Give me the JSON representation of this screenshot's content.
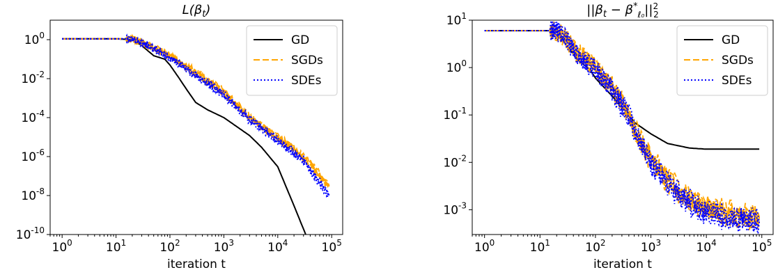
{
  "chart_data": [
    {
      "type": "line",
      "title": "L(β_t)",
      "xlabel": "iteration t",
      "ylabel": "",
      "xscale": "log",
      "yscale": "log",
      "xlim": [
        0.6,
        160000
      ],
      "ylim": [
        1e-10,
        10
      ],
      "xtick_exponents": [
        0,
        1,
        2,
        3,
        4,
        5
      ],
      "ytick_exponents": [
        0,
        -2,
        -4,
        -6,
        -8,
        -10
      ],
      "grid": false,
      "legend_position": "top-right",
      "legend": [
        {
          "label": "GD",
          "color": "#000000",
          "style": "solid"
        },
        {
          "label": "SGDs",
          "color": "#ffa500",
          "style": "dashed"
        },
        {
          "label": "SDEs",
          "color": "#0000ff",
          "style": "dotted"
        }
      ],
      "series": [
        {
          "name": "GD",
          "color": "#000000",
          "style": "solid",
          "x": [
            1,
            10,
            20,
            30,
            50,
            80,
            100,
            150,
            200,
            300,
            500,
            1000,
            3000,
            5000,
            10000,
            20000,
            33000
          ],
          "y": [
            1.1,
            1.1,
            1.0,
            0.5,
            0.15,
            0.1,
            0.05,
            0.01,
            0.003,
            0.0006,
            0.00025,
            0.0001,
            1.2e-05,
            3e-06,
            3e-07,
            3e-09,
            1e-10
          ]
        },
        {
          "name": "SGDs",
          "color": "#ffa500",
          "style": "dashed",
          "noise": 0.18,
          "x": [
            1,
            20,
            30,
            50,
            100,
            300,
            1000,
            3000,
            10000,
            30000,
            90000
          ],
          "y": [
            1.1,
            1.1,
            0.7,
            0.4,
            0.15,
            0.02,
            0.002,
            0.0001,
            1e-05,
            1e-06,
            3e-08
          ]
        },
        {
          "name": "SDEs",
          "color": "#0000ff",
          "style": "dotted",
          "noise": 0.18,
          "x": [
            1,
            20,
            30,
            50,
            100,
            300,
            1000,
            3000,
            10000,
            30000,
            90000
          ],
          "y": [
            1.1,
            1.1,
            0.65,
            0.35,
            0.12,
            0.015,
            0.0015,
            8e-05,
            7e-06,
            6e-07,
            1e-08
          ]
        }
      ]
    },
    {
      "type": "line",
      "title": "||β_t − β*_ℓ₀||²₂",
      "xlabel": "iteration t",
      "ylabel": "",
      "xscale": "log",
      "yscale": "log",
      "xlim": [
        0.6,
        160000
      ],
      "ylim": [
        0.0003,
        10
      ],
      "xtick_exponents": [
        0,
        1,
        2,
        3,
        4,
        5
      ],
      "ytick_exponents": [
        1,
        0,
        -1,
        -2,
        -3
      ],
      "grid": false,
      "legend_position": "top-right",
      "legend": [
        {
          "label": "GD",
          "color": "#000000",
          "style": "solid"
        },
        {
          "label": "SGDs",
          "color": "#ffa500",
          "style": "dashed"
        },
        {
          "label": "SDEs",
          "color": "#0000ff",
          "style": "dotted"
        }
      ],
      "series": [
        {
          "name": "GD",
          "color": "#000000",
          "style": "solid",
          "x": [
            1,
            10,
            20,
            30,
            50,
            80,
            100,
            200,
            400,
            500,
            1000,
            2000,
            5000,
            10000,
            30000,
            90000
          ],
          "y": [
            6,
            6,
            6,
            3,
            1.4,
            0.9,
            0.6,
            0.25,
            0.1,
            0.07,
            0.04,
            0.025,
            0.02,
            0.019,
            0.019,
            0.019
          ]
        },
        {
          "name": "SGDs",
          "color": "#ffa500",
          "style": "dashed",
          "noise": 0.22,
          "x": [
            1,
            20,
            30,
            50,
            100,
            200,
            400,
            500,
            1000,
            2000,
            5000,
            10000,
            30000,
            90000
          ],
          "y": [
            6,
            6,
            4,
            2,
            1,
            0.4,
            0.1,
            0.05,
            0.012,
            0.004,
            0.0017,
            0.0011,
            0.0008,
            0.0007
          ]
        },
        {
          "name": "SDEs",
          "color": "#0000ff",
          "style": "dotted",
          "noise": 0.22,
          "x": [
            1,
            20,
            30,
            50,
            100,
            200,
            400,
            500,
            1000,
            2000,
            5000,
            10000,
            30000,
            90000
          ],
          "y": [
            6,
            6,
            3.8,
            1.8,
            0.9,
            0.35,
            0.09,
            0.045,
            0.01,
            0.0035,
            0.0014,
            0.0009,
            0.0006,
            0.00055
          ]
        }
      ]
    }
  ]
}
